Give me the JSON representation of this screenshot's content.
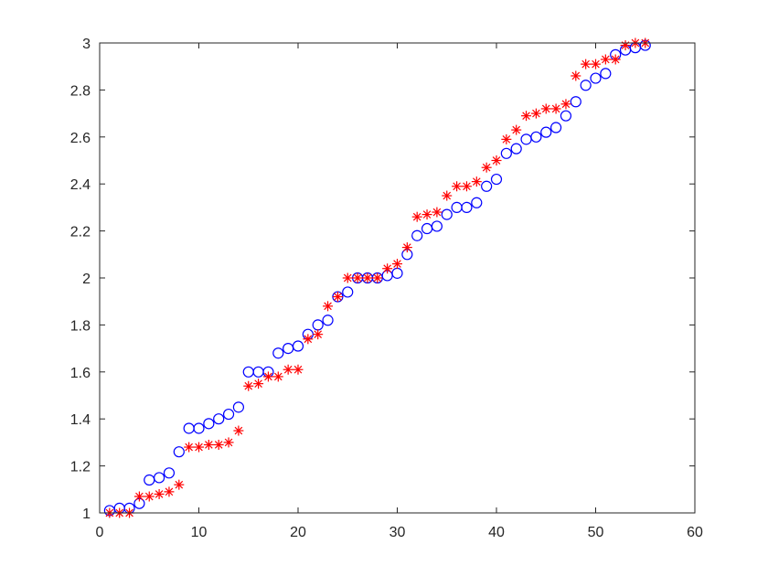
{
  "chart_data": {
    "type": "scatter",
    "title": "",
    "xlabel": "",
    "ylabel": "",
    "xlim": [
      0,
      60
    ],
    "ylim": [
      1,
      3
    ],
    "grid": false,
    "x_ticks": [
      "0",
      "10",
      "20",
      "30",
      "40",
      "50",
      "60"
    ],
    "y_ticks": [
      "1",
      "1.2",
      "1.4",
      "1.6",
      "1.8",
      "2",
      "2.2",
      "2.4",
      "2.6",
      "2.8",
      "3"
    ],
    "x_tick_values": [
      0,
      10,
      20,
      30,
      40,
      50,
      60
    ],
    "y_tick_values": [
      1,
      1.2,
      1.4,
      1.6,
      1.8,
      2,
      2.2,
      2.4,
      2.6,
      2.8,
      3
    ],
    "x": [
      1,
      2,
      3,
      4,
      5,
      6,
      7,
      8,
      9,
      10,
      11,
      12,
      13,
      14,
      15,
      16,
      17,
      18,
      19,
      20,
      21,
      22,
      23,
      24,
      25,
      26,
      27,
      28,
      29,
      30,
      31,
      32,
      33,
      34,
      35,
      36,
      37,
      38,
      39,
      40,
      41,
      42,
      43,
      44,
      45,
      46,
      47,
      48,
      49,
      50,
      51,
      52,
      53,
      54,
      55
    ],
    "series": [
      {
        "marker": "circle",
        "color": "#0000ff",
        "values": [
          1.01,
          1.02,
          1.02,
          1.04,
          1.14,
          1.15,
          1.17,
          1.26,
          1.36,
          1.36,
          1.38,
          1.4,
          1.42,
          1.45,
          1.6,
          1.6,
          1.6,
          1.68,
          1.7,
          1.71,
          1.76,
          1.8,
          1.82,
          1.92,
          1.94,
          2.0,
          2.0,
          2.0,
          2.01,
          2.02,
          2.1,
          2.18,
          2.21,
          2.22,
          2.27,
          2.3,
          2.3,
          2.32,
          2.39,
          2.42,
          2.53,
          2.55,
          2.59,
          2.6,
          2.62,
          2.64,
          2.69,
          2.75,
          2.82,
          2.85,
          2.87,
          2.95,
          2.97,
          2.98,
          2.99
        ]
      },
      {
        "marker": "asterisk",
        "color": "#ff0000",
        "values": [
          1.0,
          1.0,
          1.0,
          1.07,
          1.07,
          1.08,
          1.09,
          1.12,
          1.28,
          1.28,
          1.29,
          1.29,
          1.3,
          1.35,
          1.54,
          1.55,
          1.58,
          1.58,
          1.61,
          1.61,
          1.74,
          1.76,
          1.88,
          1.92,
          2.0,
          2.0,
          2.0,
          2.0,
          2.04,
          2.06,
          2.13,
          2.26,
          2.27,
          2.28,
          2.35,
          2.39,
          2.39,
          2.41,
          2.47,
          2.5,
          2.59,
          2.63,
          2.69,
          2.7,
          2.72,
          2.72,
          2.74,
          2.86,
          2.91,
          2.91,
          2.93,
          2.93,
          2.99,
          3.0,
          3.0
        ]
      }
    ]
  }
}
